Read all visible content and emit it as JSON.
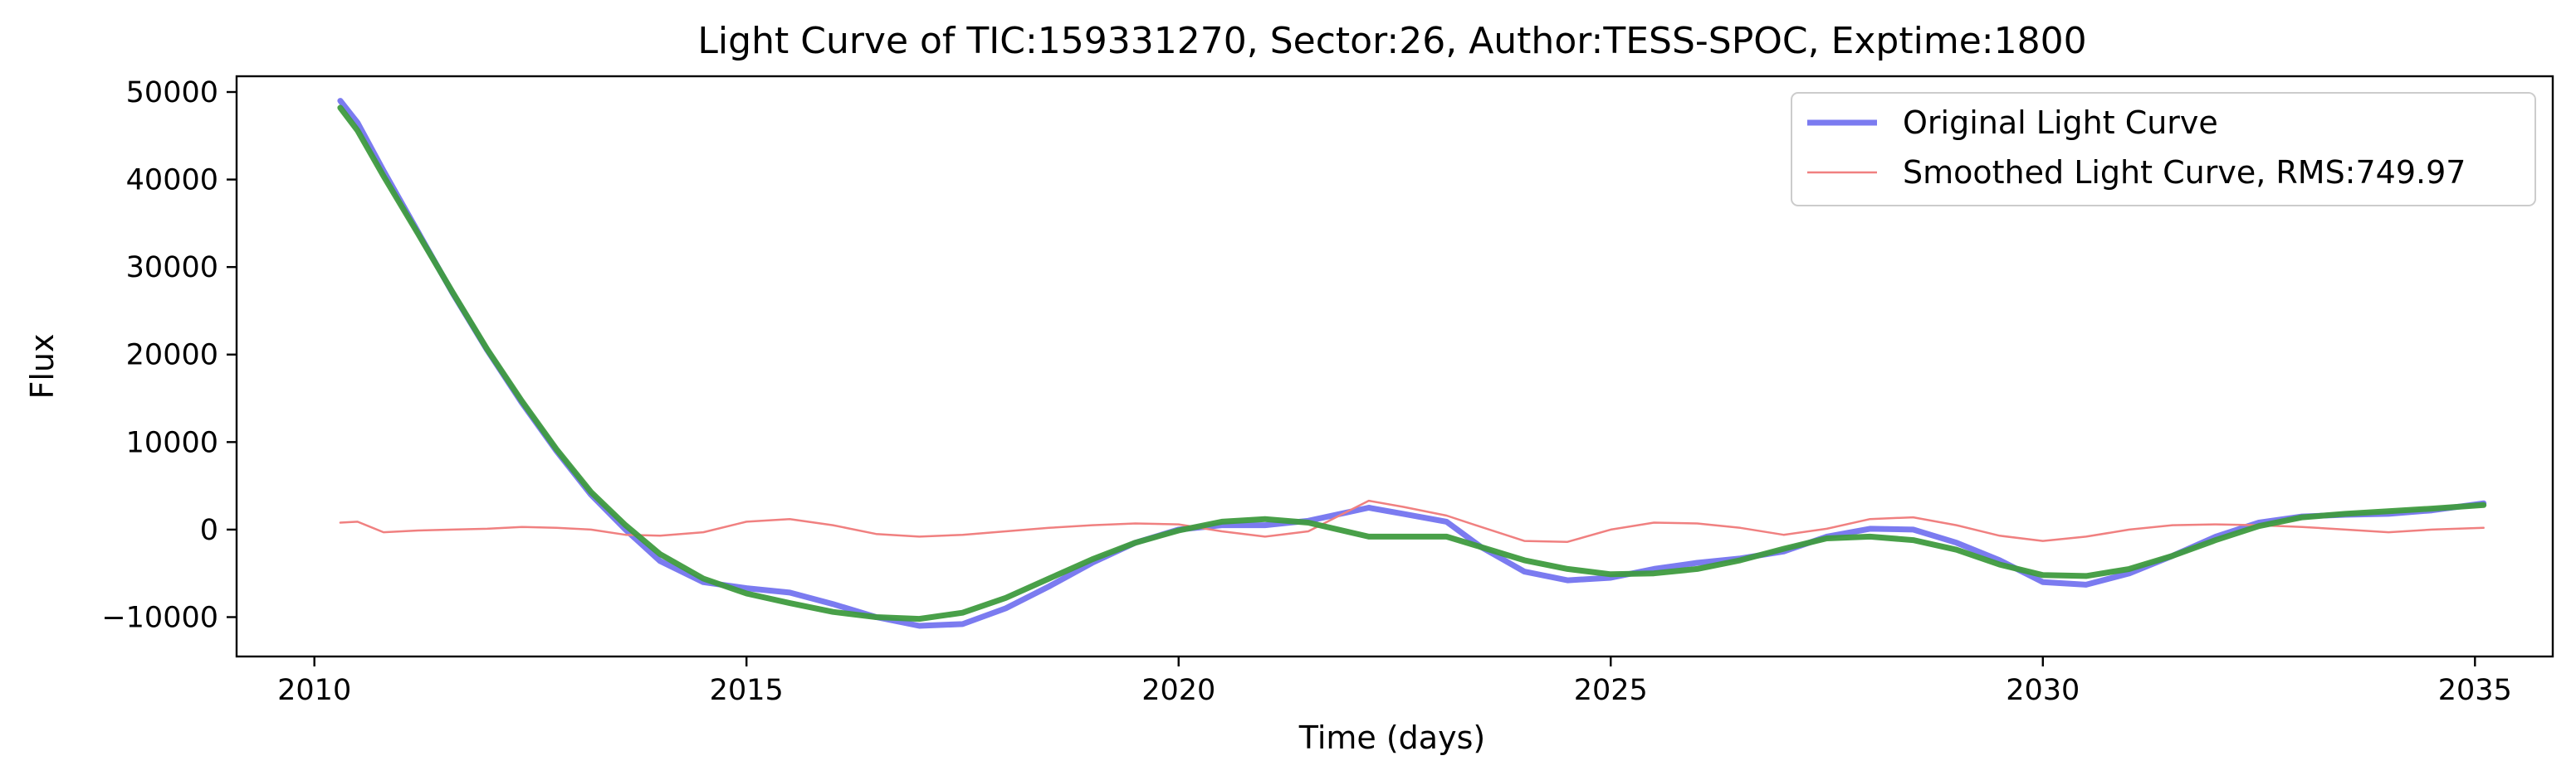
{
  "chart_data": {
    "type": "line",
    "title": "Light Curve of TIC:159331270, Sector:26, Author:TESS-SPOC, Exptime:1800",
    "xlabel": "Time (days)",
    "ylabel": "Flux",
    "xlim": [
      2009.1,
      2035.9
    ],
    "ylim": [
      -14500,
      51800
    ],
    "xticks": [
      2010,
      2015,
      2020,
      2025,
      2030,
      2035
    ],
    "yticks": [
      -10000,
      0,
      10000,
      20000,
      30000,
      40000,
      50000
    ],
    "xtick_labels": [
      "2010",
      "2015",
      "2020",
      "2025",
      "2030",
      "2035"
    ],
    "ytick_labels": [
      "−10000",
      "0",
      "10000",
      "20000",
      "30000",
      "40000",
      "50000"
    ],
    "grid": false,
    "legend_position": "top-right",
    "series": [
      {
        "name": "Original Light Curve",
        "color": "#7b7bf0",
        "x": [
          2010.3,
          2010.5,
          2010.8,
          2011.2,
          2011.6,
          2012.0,
          2012.4,
          2012.8,
          2013.2,
          2013.6,
          2014.0,
          2014.5,
          2015.0,
          2015.5,
          2016.0,
          2016.5,
          2017.0,
          2017.5,
          2018.0,
          2018.5,
          2019.0,
          2019.5,
          2020.0,
          2020.5,
          2021.0,
          2021.5,
          2022.2,
          2022.6,
          2023.1,
          2023.5,
          2024.0,
          2024.5,
          2025.0,
          2025.5,
          2026.0,
          2026.5,
          2027.0,
          2027.5,
          2028.0,
          2028.5,
          2029.0,
          2029.5,
          2030.0,
          2030.5,
          2031.0,
          2031.5,
          2032.0,
          2032.5,
          2033.0,
          2033.5,
          2034.0,
          2034.5,
          2035.1
        ],
        "y": [
          49000,
          46500,
          41000,
          34000,
          27000,
          20500,
          14500,
          9000,
          4000,
          0,
          -3600,
          -6000,
          -6700,
          -7200,
          -8500,
          -10000,
          -11000,
          -10800,
          -9000,
          -6500,
          -3800,
          -1500,
          0,
          500,
          500,
          1000,
          2500,
          1800,
          900,
          -2000,
          -4800,
          -5800,
          -5500,
          -4500,
          -3800,
          -3300,
          -2500,
          -800,
          100,
          0,
          -1500,
          -3500,
          -6000,
          -6300,
          -5000,
          -3000,
          -800,
          800,
          1500,
          1700,
          1800,
          2200,
          3000
        ]
      },
      {
        "name": "Smoothed Light Curve, RMS:749.97",
        "color": "#f08080",
        "x": [
          2010.3,
          2010.5,
          2010.8,
          2011.2,
          2011.6,
          2012.0,
          2012.4,
          2012.8,
          2013.2,
          2013.6,
          2014.0,
          2014.5,
          2015.0,
          2015.5,
          2016.0,
          2016.5,
          2017.0,
          2017.5,
          2018.0,
          2018.5,
          2019.0,
          2019.5,
          2020.0,
          2020.5,
          2021.0,
          2021.5,
          2022.2,
          2022.6,
          2023.1,
          2023.5,
          2024.0,
          2024.5,
          2025.0,
          2025.5,
          2026.0,
          2026.5,
          2027.0,
          2027.5,
          2028.0,
          2028.5,
          2029.0,
          2029.5,
          2030.0,
          2030.5,
          2031.0,
          2031.5,
          2032.0,
          2032.5,
          2033.0,
          2033.5,
          2034.0,
          2034.5,
          2035.1
        ],
        "y": [
          800,
          900,
          -300,
          -100,
          0,
          100,
          300,
          200,
          0,
          -600,
          -700,
          -300,
          900,
          1200,
          500,
          -500,
          -800,
          -600,
          -200,
          200,
          500,
          700,
          600,
          -200,
          -800,
          -200,
          3300,
          2600,
          1600,
          300,
          -1300,
          -1400,
          0,
          800,
          700,
          200,
          -600,
          100,
          1200,
          1400,
          500,
          -700,
          -1300,
          -800,
          0,
          500,
          600,
          500,
          300,
          0,
          -300,
          0,
          200
        ]
      },
      {
        "name": "",
        "color": "#3f9b3f",
        "x": [
          2010.3,
          2010.5,
          2010.8,
          2011.2,
          2011.6,
          2012.0,
          2012.4,
          2012.8,
          2013.2,
          2013.6,
          2014.0,
          2014.5,
          2015.0,
          2015.5,
          2016.0,
          2016.5,
          2017.0,
          2017.5,
          2018.0,
          2018.5,
          2019.0,
          2019.5,
          2020.0,
          2020.5,
          2021.0,
          2021.5,
          2022.2,
          2022.6,
          2023.1,
          2023.5,
          2024.0,
          2024.5,
          2025.0,
          2025.5,
          2026.0,
          2026.5,
          2027.0,
          2027.5,
          2028.0,
          2028.5,
          2029.0,
          2029.5,
          2030.0,
          2030.5,
          2031.0,
          2031.5,
          2032.0,
          2032.5,
          2033.0,
          2033.5,
          2034.0,
          2034.5,
          2035.1
        ],
        "y": [
          48200,
          45600,
          40400,
          33800,
          27100,
          20600,
          14700,
          9200,
          4300,
          500,
          -2800,
          -5600,
          -7300,
          -8400,
          -9400,
          -10000,
          -10200,
          -9500,
          -7800,
          -5600,
          -3400,
          -1500,
          -100,
          900,
          1200,
          800,
          -800,
          -800,
          -800,
          -2000,
          -3500,
          -4500,
          -5100,
          -5000,
          -4500,
          -3500,
          -2200,
          -1000,
          -800,
          -1200,
          -2300,
          -4000,
          -5200,
          -5300,
          -4500,
          -3000,
          -1200,
          400,
          1400,
          1800,
          2100,
          2400,
          2800
        ]
      }
    ]
  }
}
